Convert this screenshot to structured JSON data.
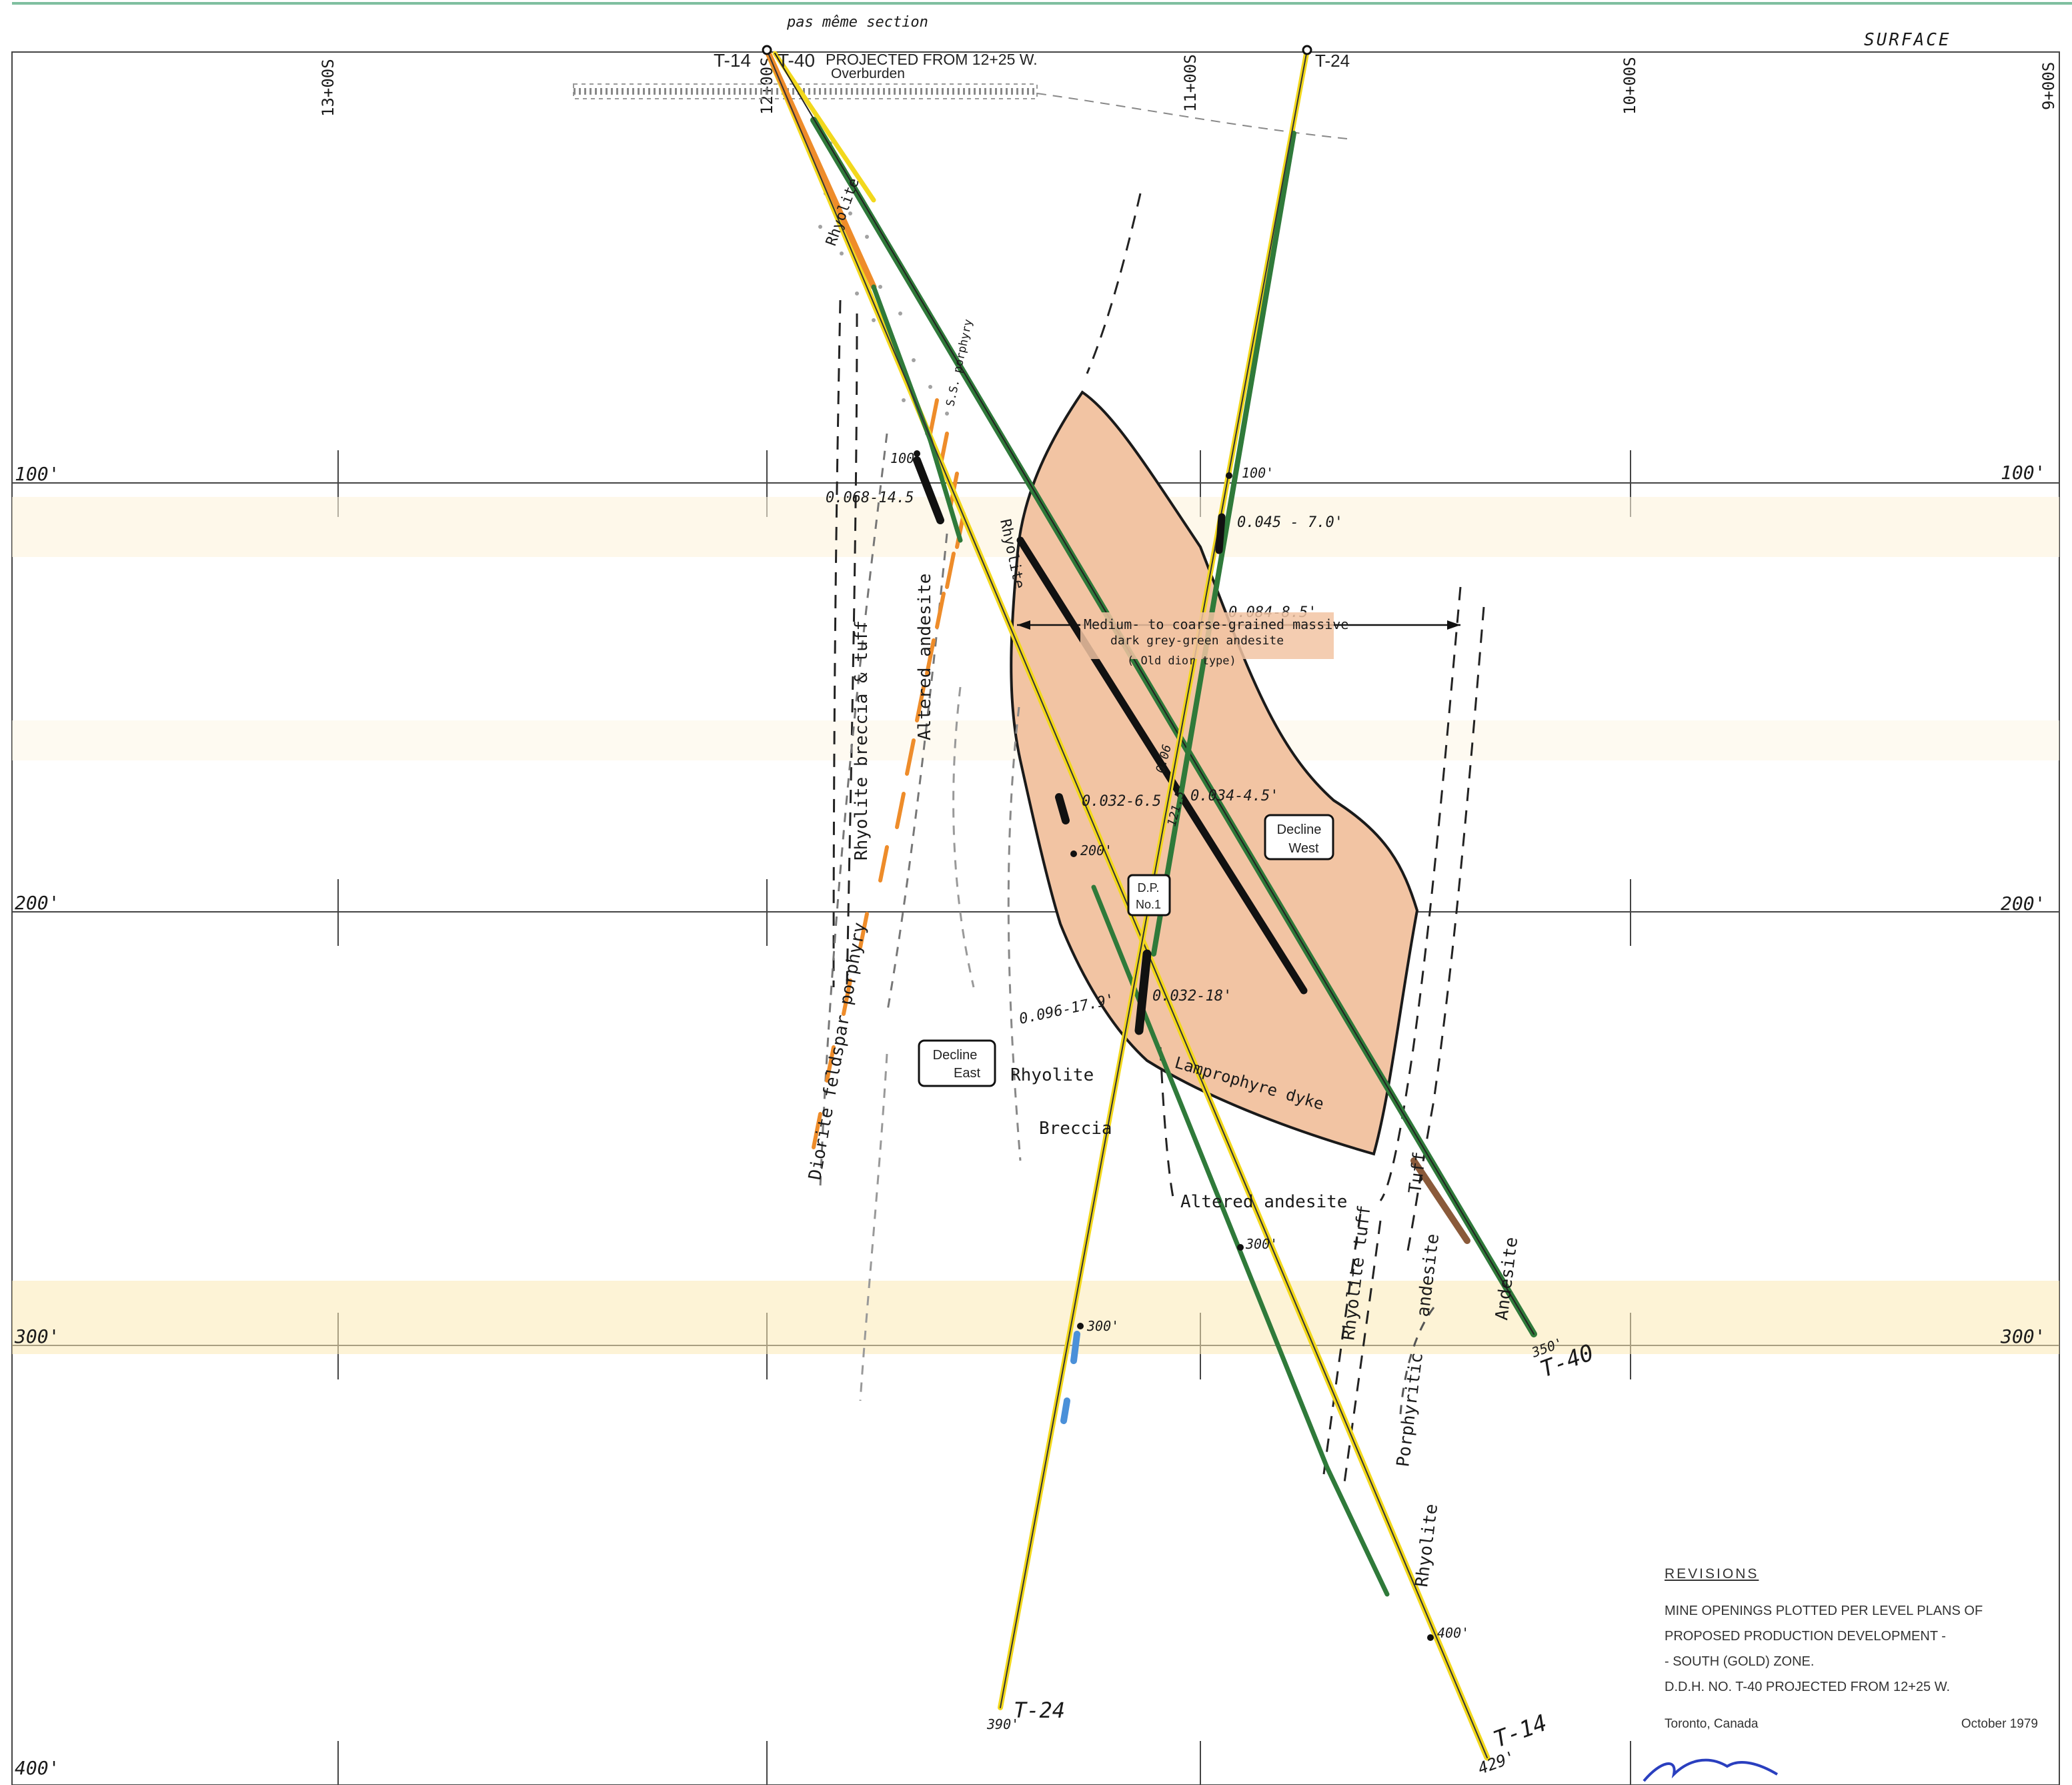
{
  "header": {
    "surface_label": "SURFACE",
    "collar_note": "pas même section",
    "projection_note": "PROJECTED FROM 12+25 W.",
    "overburden_label": "Overburden"
  },
  "grid": {
    "easting_labels": [
      "13+00S",
      "12+00S",
      "11+00S",
      "10+00S",
      "9+00S"
    ],
    "depth_labels": [
      "100'",
      "200'",
      "300'",
      "400'"
    ]
  },
  "holes": [
    {
      "id": "T-14",
      "collar_label": "T-14",
      "end_label": "T-14",
      "end_depth": "429'"
    },
    {
      "id": "T-40",
      "collar_label": "T-40",
      "end_label": "T-40",
      "end_depth": "350'"
    },
    {
      "id": "T-24",
      "collar_label": "T-24",
      "end_label": "T-24",
      "end_depth": "390'"
    }
  ],
  "depth_marks": {
    "t14_100": "100",
    "t14_200": "200'",
    "t14_300": "300'",
    "t14_400": "400'",
    "t24_100": "100'",
    "t24_300": "300'"
  },
  "assays": [
    {
      "id": "a1",
      "text": "0.068-14.5"
    },
    {
      "id": "a2",
      "text": "0.045 - 7.0'"
    },
    {
      "id": "a3",
      "text": "0.084-8.5'"
    },
    {
      "id": "a4",
      "text": "0.034-4.5'"
    },
    {
      "id": "a5",
      "text": "0.032-6.5"
    },
    {
      "id": "a6",
      "text": "0.032-18'"
    },
    {
      "id": "a7",
      "text": "0.096-17.9'"
    },
    {
      "id": "a8",
      "text": "0.06"
    },
    {
      "id": "a9",
      "text": "121.5'"
    }
  ],
  "units": {
    "andesite_desc": [
      "Medium- to coarse-grained massive",
      "dark grey-green andesite",
      "( Old dior  type)"
    ],
    "rhyolite_breccia_tuff": "Rhyolite breccia & tuff",
    "altered_andesite_left": "Altered andesite",
    "diorite_porphyry": "Diorite feldspar porphyry",
    "rhyolite_upper": "Rhyolite",
    "rhyolite_lower": "Rhyolite",
    "breccia": "Breccia",
    "lamprophyre": "Lamprophyre dyke",
    "altered_andesite_bottom": "Altered andesite",
    "rhyolite_tuff": "Rhyolite tuff",
    "andesite_tuff": "andesite",
    "tuff": "Tuff",
    "andesite_right": "Andesite",
    "porphyritic": "Porphyritic",
    "rhyolite_deep": "Rhyolite",
    "rhyolite_shallow": "Rhyolite",
    "ss_porphyry": "S.S. porphyry"
  },
  "openings": {
    "decline_west": [
      "Decline",
      "West"
    ],
    "decline_east": [
      "Decline",
      "East"
    ],
    "dp": [
      "D.P.",
      "No.1"
    ]
  },
  "revisions": {
    "heading": "REVISIONS",
    "lines": [
      "Mine openings plotted per level plans of",
      "proposed production development -",
      "- South (gold) zone.",
      "D.D.H. No. T-40 projected from 12+25 W."
    ],
    "place": "Toronto, Canada",
    "date": "October 1979"
  },
  "colors": {
    "andesite_fill": "#f2c4a3",
    "green_trace": "#2f7a3a",
    "yellow_trace": "#f2d81c",
    "orange_trace": "#ee8c2a",
    "grid": "#444444"
  }
}
